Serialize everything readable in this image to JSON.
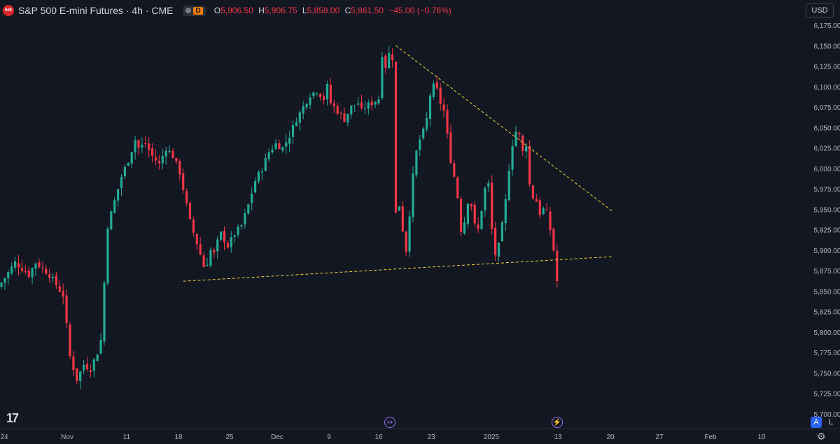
{
  "header": {
    "logo_text": "500",
    "title": "S&P 500 E-mini Futures · 4h · CME",
    "badge_letter": "D",
    "ohlc": [
      {
        "k": "O",
        "v": "5,906.50"
      },
      {
        "k": "H",
        "v": "5,906.75"
      },
      {
        "k": "L",
        "v": "5,858.00"
      },
      {
        "k": "C",
        "v": "5,861.50"
      }
    ],
    "change": "−45.00 (−0.76%)"
  },
  "currency": "USD",
  "buttons": {
    "auto": "A",
    "log": "L"
  },
  "colors": {
    "up": "#22ab94",
    "down": "#f23645",
    "background": "#131722",
    "trendline": "#f0d43a",
    "text": "#b2b5be"
  },
  "chart_data": {
    "type": "candlestick",
    "interval": "4h",
    "y_ticks": [
      "6,175.00",
      "6,150.00",
      "6,125.00",
      "6,100.00",
      "6,075.00",
      "6,050.00",
      "6,025.00",
      "6,000.00",
      "5,975.00",
      "5,950.00",
      "5,925.00",
      "5,900.00",
      "5,875.00",
      "5,850.00",
      "5,825.00",
      "5,800.00",
      "5,775.00",
      "5,750.00",
      "5,725.00",
      "5,700.00"
    ],
    "x_labels": [
      {
        "label": "24",
        "x": 0
      },
      {
        "label": "Nov",
        "x": 1
      },
      {
        "label": "11",
        "x": 2
      },
      {
        "label": "18",
        "x": 3
      },
      {
        "label": "25",
        "x": 4
      },
      {
        "label": "Dec",
        "x": 5
      },
      {
        "label": "9",
        "x": 6
      },
      {
        "label": "16",
        "x": 7
      },
      {
        "label": "23",
        "x": 8
      },
      {
        "label": "2025",
        "x": 9
      },
      {
        "label": "13",
        "x": 10
      },
      {
        "label": "20",
        "x": 11
      },
      {
        "label": "27",
        "x": 12
      },
      {
        "label": "Feb",
        "x": 13
      },
      {
        "label": "10",
        "x": 14
      }
    ],
    "ylim": [
      5698,
      6190
    ],
    "close_path": [
      [
        0,
        5860
      ],
      [
        4,
        5885
      ],
      [
        8,
        5870
      ],
      [
        10,
        5885
      ],
      [
        14,
        5870
      ],
      [
        18,
        5845
      ],
      [
        20,
        5770
      ],
      [
        22,
        5742
      ],
      [
        24,
        5760
      ],
      [
        26,
        5755
      ],
      [
        27,
        5765
      ],
      [
        28,
        5775
      ],
      [
        29,
        5790
      ],
      [
        30,
        5860
      ],
      [
        31,
        5930
      ],
      [
        33,
        5960
      ],
      [
        35,
        5990
      ],
      [
        37,
        6010
      ],
      [
        39,
        6035
      ],
      [
        40,
        6025
      ],
      [
        42,
        6030
      ],
      [
        44,
        6015
      ],
      [
        46,
        6005
      ],
      [
        48,
        6025
      ],
      [
        50,
        6015
      ],
      [
        52,
        5995
      ],
      [
        55,
        5935
      ],
      [
        58,
        5895
      ],
      [
        59,
        5880
      ],
      [
        60,
        5885
      ],
      [
        61,
        5900
      ],
      [
        62,
        5895
      ],
      [
        63,
        5910
      ],
      [
        64,
        5920
      ],
      [
        66,
        5905
      ],
      [
        68,
        5920
      ],
      [
        70,
        5930
      ],
      [
        72,
        5955
      ],
      [
        74,
        5985
      ],
      [
        76,
        6000
      ],
      [
        78,
        6020
      ],
      [
        80,
        6030
      ],
      [
        82,
        6025
      ],
      [
        84,
        6040
      ],
      [
        86,
        6060
      ],
      [
        88,
        6075
      ],
      [
        90,
        6090
      ],
      [
        92,
        6095
      ],
      [
        94,
        6085
      ],
      [
        95,
        6100
      ],
      [
        96,
        6080
      ],
      [
        98,
        6070
      ],
      [
        100,
        6060
      ],
      [
        102,
        6075
      ],
      [
        104,
        6080
      ],
      [
        105,
        6070
      ],
      [
        106,
        6075
      ],
      [
        108,
        6080
      ],
      [
        110,
        6085
      ],
      [
        111,
        6140
      ],
      [
        112,
        6125
      ],
      [
        113,
        6140
      ],
      [
        114,
        6135
      ],
      [
        115,
        5945
      ],
      [
        116,
        5955
      ],
      [
        117,
        5925
      ],
      [
        118,
        5900
      ],
      [
        119,
        5945
      ],
      [
        120,
        5990
      ],
      [
        121,
        6020
      ],
      [
        122,
        6035
      ],
      [
        123,
        6045
      ],
      [
        124,
        6060
      ],
      [
        125,
        6090
      ],
      [
        126,
        6100
      ],
      [
        127,
        6095
      ],
      [
        128,
        6080
      ],
      [
        129,
        6070
      ],
      [
        130,
        6040
      ],
      [
        131,
        6010
      ],
      [
        132,
        5990
      ],
      [
        133,
        5965
      ],
      [
        134,
        5925
      ],
      [
        135,
        5935
      ],
      [
        136,
        5960
      ],
      [
        137,
        5955
      ],
      [
        138,
        5930
      ],
      [
        139,
        5925
      ],
      [
        140,
        5950
      ],
      [
        141,
        5975
      ],
      [
        142,
        5980
      ],
      [
        143,
        5925
      ],
      [
        144,
        5895
      ],
      [
        145,
        5905
      ],
      [
        146,
        5930
      ],
      [
        147,
        5960
      ],
      [
        148,
        6000
      ],
      [
        149,
        6030
      ],
      [
        150,
        6045
      ],
      [
        151,
        6040
      ],
      [
        152,
        6020
      ],
      [
        153,
        6030
      ],
      [
        154,
        5980
      ],
      [
        155,
        5965
      ],
      [
        156,
        5960
      ],
      [
        157,
        5945
      ],
      [
        158,
        5950
      ],
      [
        159,
        5945
      ],
      [
        160,
        5925
      ],
      [
        161,
        5900
      ],
      [
        162,
        5862
      ]
    ],
    "trendlines": [
      {
        "from": [
          53,
          5862
        ],
        "to": [
          178,
          5892
        ],
        "color": "#f0d43a"
      },
      {
        "from": [
          115,
          6150
        ],
        "to": [
          178,
          5948
        ],
        "color": "#f0d43a"
      }
    ],
    "events": [
      {
        "icon": "split-arrow-icon",
        "x": 110
      },
      {
        "icon": "lightning-icon",
        "x": 158
      }
    ]
  }
}
